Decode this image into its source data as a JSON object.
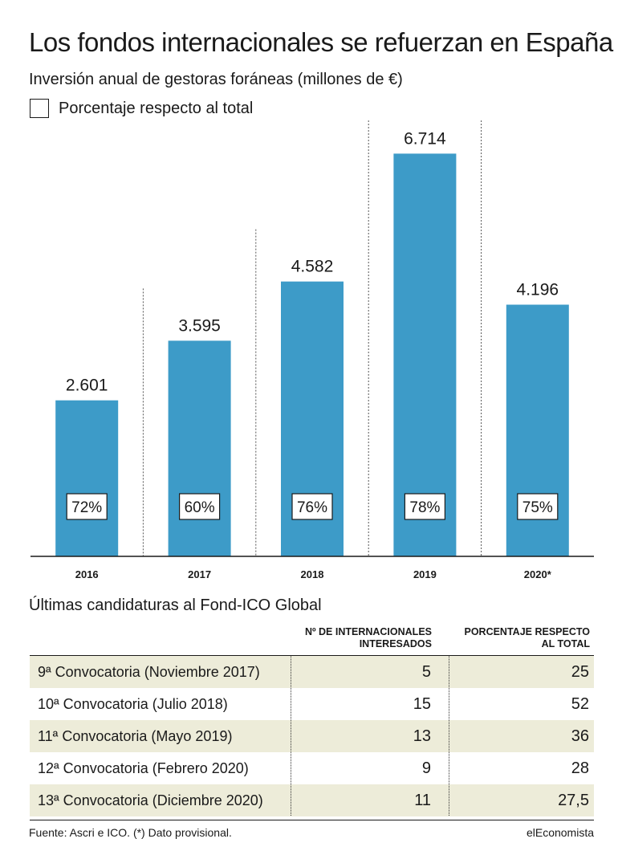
{
  "title": "Los fondos internacionales se refuerzan en España",
  "subtitle": "Inversión anual de gestoras foráneas (millones de €)",
  "legend_label": "Porcentaje respecto al total",
  "colors": {
    "bar": "#3d9bc8",
    "shade": "#edecd9",
    "text": "#1a1a1a"
  },
  "chart_data": {
    "type": "bar",
    "categories": [
      "2016",
      "2017",
      "2018",
      "2019",
      "2020*"
    ],
    "values": [
      2601,
      3595,
      4582,
      6714,
      4196
    ],
    "value_labels": [
      "2.601",
      "3.595",
      "4.582",
      "6.714",
      "4.196"
    ],
    "percent_labels": [
      "72%",
      "60%",
      "76%",
      "78%",
      "75%"
    ],
    "title": "Los fondos internacionales se refuerzan en España",
    "ylabel": "Inversión anual de gestoras foráneas (millones de €)",
    "ylim": [
      0,
      7000
    ],
    "grid": false
  },
  "table": {
    "title": "Últimas candidaturas al Fond-ICO Global",
    "col1_header_line1": "Nº DE INTERNACIONALES",
    "col1_header_line2": "INTERESADOS",
    "col2_header_line1": "PORCENTAJE RESPECTO",
    "col2_header_line2": "AL TOTAL",
    "rows": [
      {
        "label": "9ª Convocatoria (Noviembre 2017)",
        "v1": "5",
        "v2": "25"
      },
      {
        "label": "10ª Convocatoria (Julio 2018)",
        "v1": "15",
        "v2": "52"
      },
      {
        "label": "11ª Convocatoria (Mayo 2019)",
        "v1": "13",
        "v2": "36"
      },
      {
        "label": "12ª Convocatoria (Febrero 2020)",
        "v1": "9",
        "v2": "28"
      },
      {
        "label": "13ª Convocatoria (Diciembre 2020)",
        "v1": "11",
        "v2": "27,5"
      }
    ]
  },
  "footer": {
    "source": "Fuente: Ascri e ICO. (*) Dato provisional.",
    "brand": "elEconomista"
  }
}
